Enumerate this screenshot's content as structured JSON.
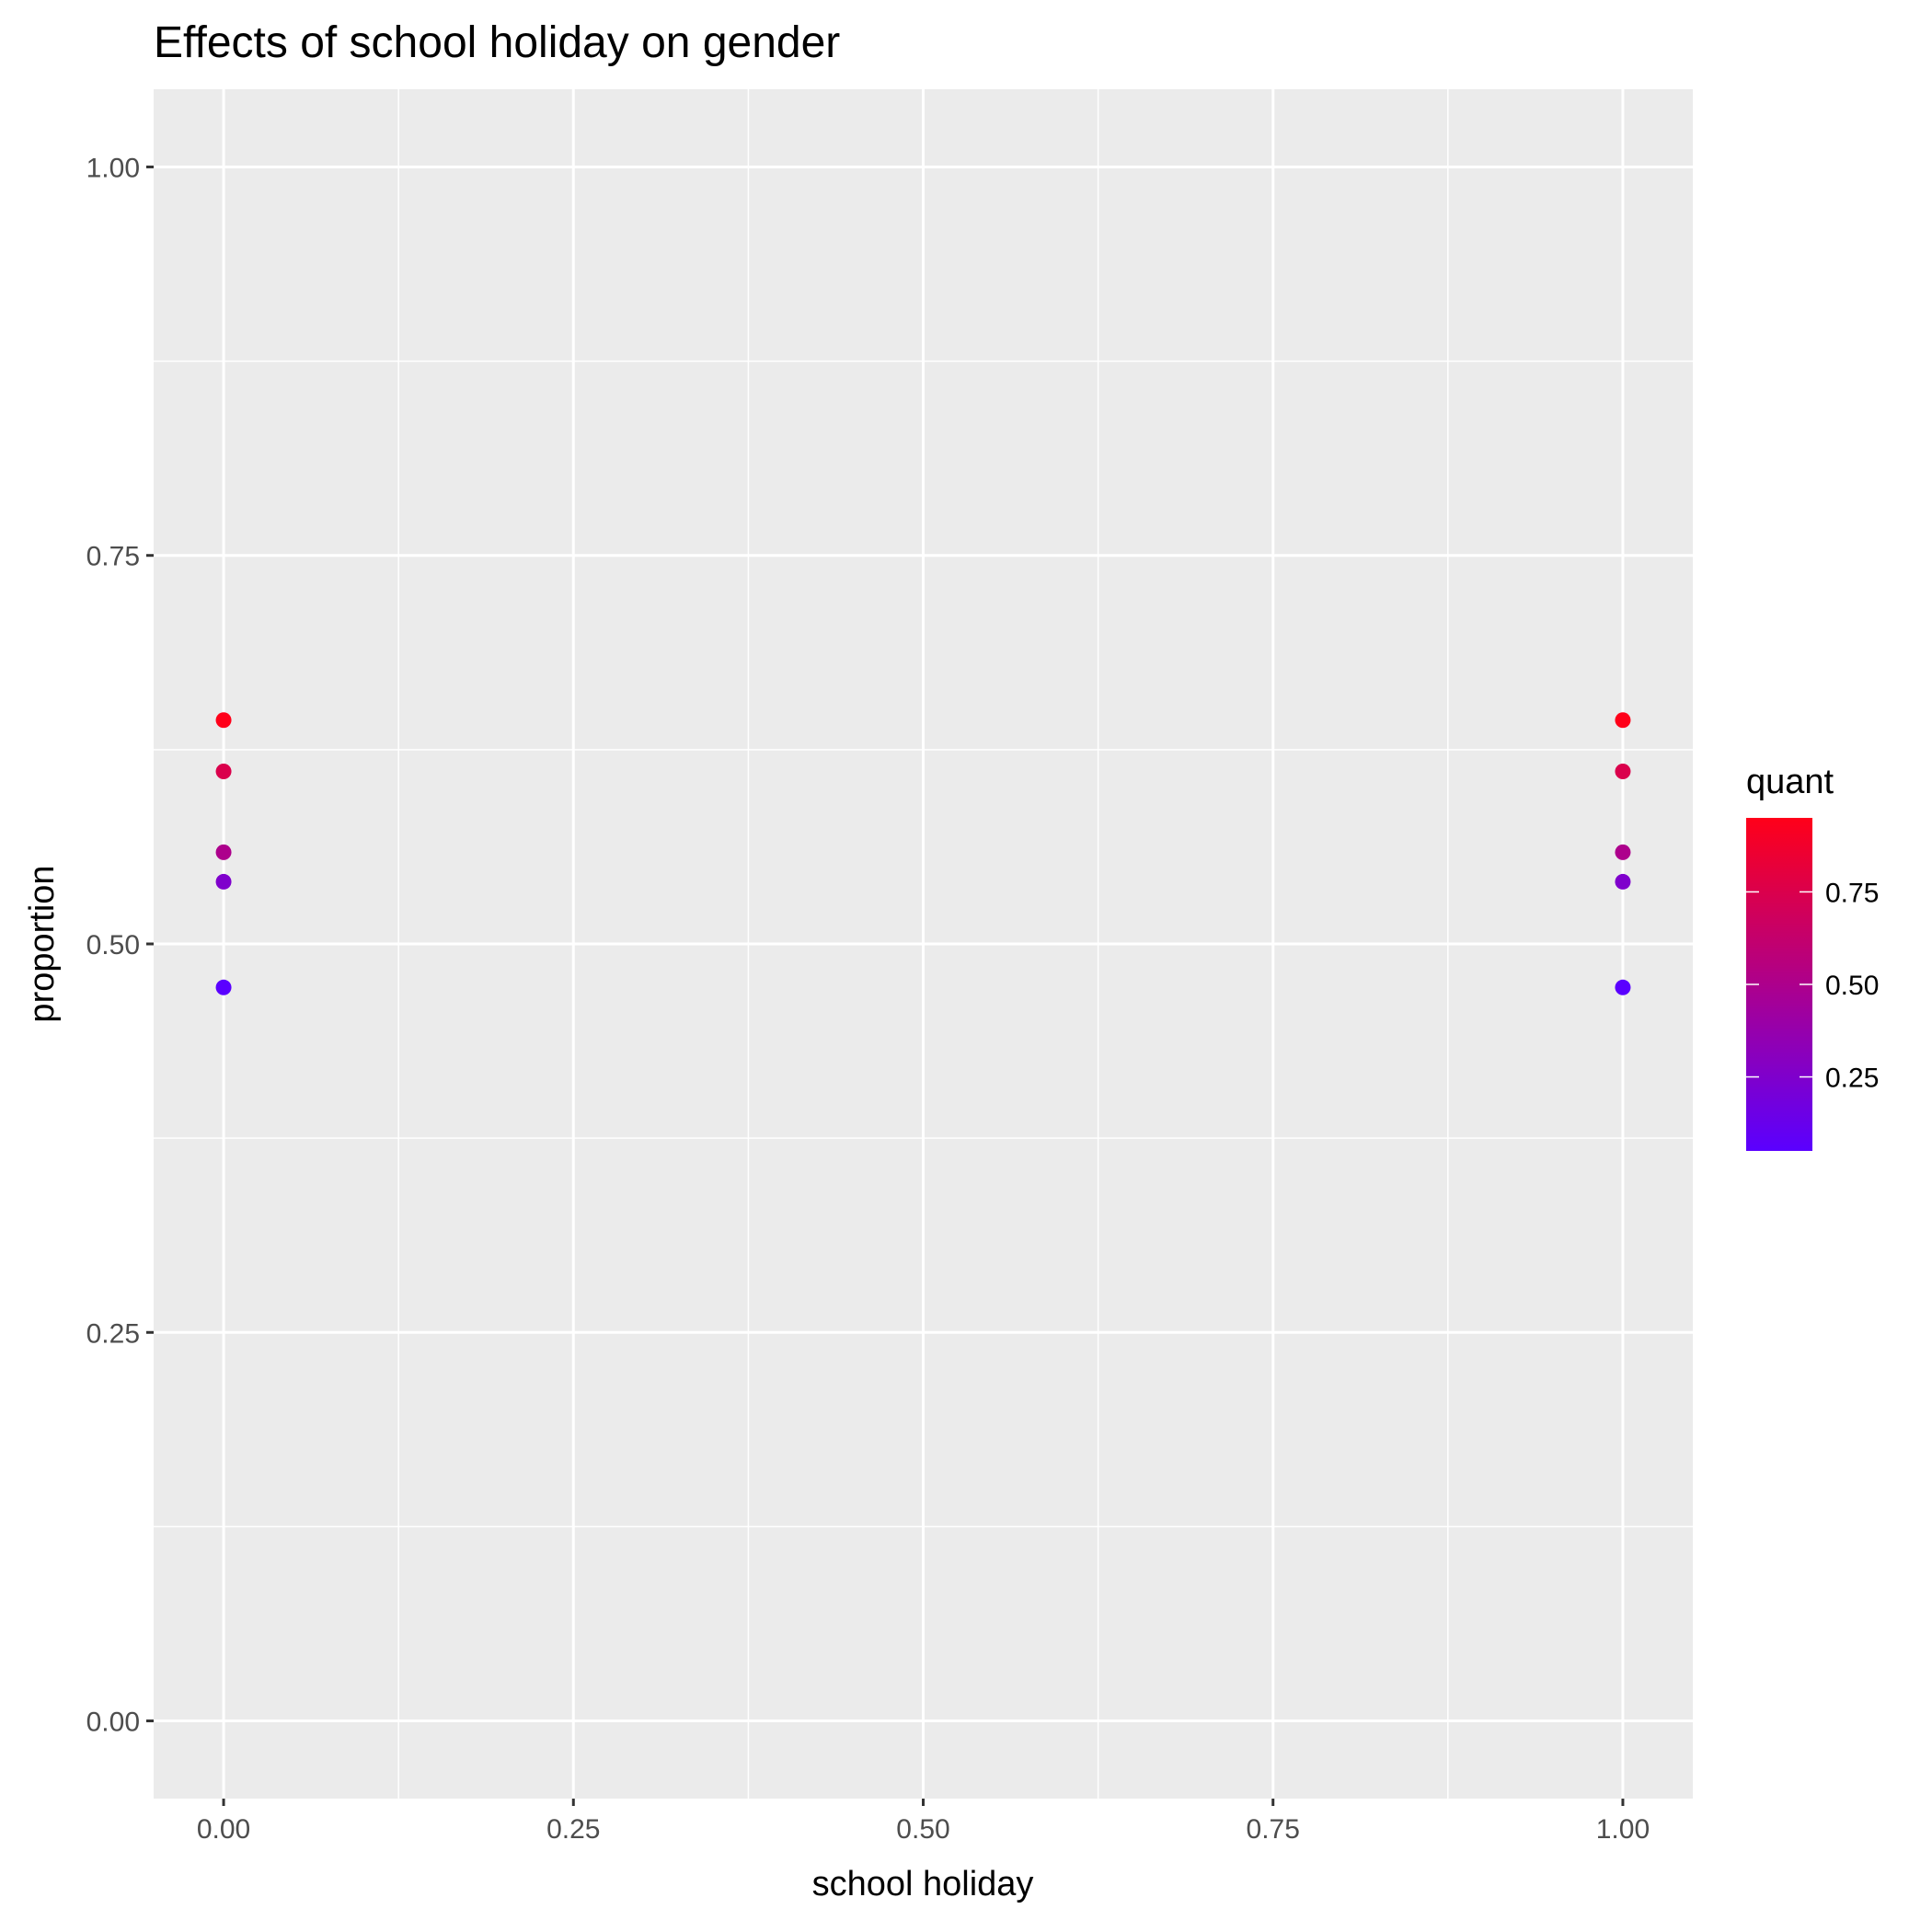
{
  "chart_data": {
    "type": "scatter",
    "title": "Effects of school holiday on gender",
    "xlabel": "school holiday",
    "ylabel": "proportion",
    "xlim": [
      -0.05,
      1.05
    ],
    "ylim": [
      -0.05,
      1.05
    ],
    "x_ticks": [
      0,
      0.25,
      0.5,
      0.75,
      1
    ],
    "x_tick_labels": [
      "0.00",
      "0.25",
      "0.50",
      "0.75",
      "1.00"
    ],
    "y_ticks": [
      0,
      0.25,
      0.5,
      0.75,
      1
    ],
    "y_tick_labels": [
      "0.00",
      "0.25",
      "0.50",
      "0.75",
      "1.00"
    ],
    "grid": true,
    "panel_background": "#ebebeb",
    "grid_color": "#ffffff",
    "points": [
      {
        "x": 0,
        "y": 0.472,
        "quant": 0.05
      },
      {
        "x": 0,
        "y": 0.54,
        "quant": 0.25
      },
      {
        "x": 0,
        "y": 0.559,
        "quant": 0.5
      },
      {
        "x": 0,
        "y": 0.611,
        "quant": 0.75
      },
      {
        "x": 0,
        "y": 0.644,
        "quant": 0.95
      },
      {
        "x": 1,
        "y": 0.472,
        "quant": 0.05
      },
      {
        "x": 1,
        "y": 0.54,
        "quant": 0.25
      },
      {
        "x": 1,
        "y": 0.559,
        "quant": 0.5
      },
      {
        "x": 1,
        "y": 0.611,
        "quant": 0.75
      },
      {
        "x": 1,
        "y": 0.644,
        "quant": 0.95
      }
    ],
    "legend": {
      "title": "quant",
      "placement": "right",
      "range": [
        0.05,
        0.95
      ],
      "ticks": [
        0.25,
        0.5,
        0.75
      ],
      "tick_labels": [
        "0.25",
        "0.50",
        "0.75"
      ],
      "low_color": "#5a00ff",
      "high_color": "#ff0019"
    }
  }
}
